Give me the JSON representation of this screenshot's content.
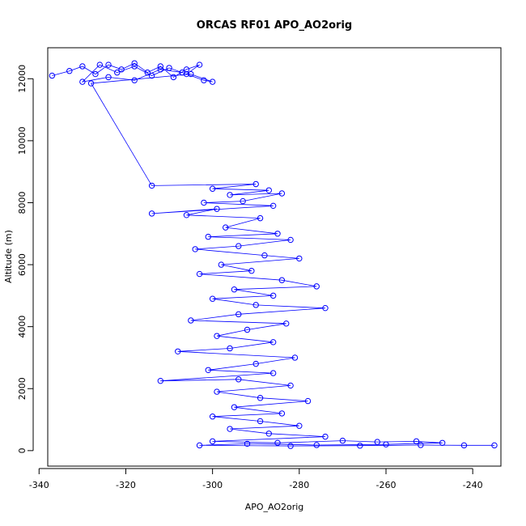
{
  "chart_data": {
    "type": "scatter",
    "title": "ORCAS RF01 APO_AO2orig",
    "xlabel": "APO_AO2orig",
    "ylabel": "Altitude (m)",
    "xlim": [
      -338.0,
      -233.5
    ],
    "ylim": [
      -500,
      13000
    ],
    "x_ticks": [
      -340,
      -320,
      -300,
      -280,
      -260,
      -240
    ],
    "y_ticks": [
      0,
      2000,
      4000,
      6000,
      8000,
      10000,
      12000
    ],
    "marker": "open-circle",
    "connect_points": true,
    "grid": false,
    "legend": "none",
    "colors": {
      "series": "#0000ff",
      "axis": "#000000",
      "background": "#ffffff"
    },
    "series": [
      {
        "values": [
          [
            -337,
            12100
          ],
          [
            -333,
            12250
          ],
          [
            -330,
            12400
          ],
          [
            -327,
            12150
          ],
          [
            -324,
            12450
          ],
          [
            -321,
            12300
          ],
          [
            -318,
            12500
          ],
          [
            -315,
            12200
          ],
          [
            -312,
            12400
          ],
          [
            -309,
            12050
          ],
          [
            -306,
            12300
          ],
          [
            -303,
            12450
          ],
          [
            -306,
            12150
          ],
          [
            -310,
            12350
          ],
          [
            -314,
            12100
          ],
          [
            -318,
            12400
          ],
          [
            -322,
            12200
          ],
          [
            -326,
            12450
          ],
          [
            -330,
            11900
          ],
          [
            -324,
            12050
          ],
          [
            -318,
            11950
          ],
          [
            -312,
            12300
          ],
          [
            -307,
            12200
          ],
          [
            -302,
            11950
          ],
          [
            -300,
            11900
          ],
          [
            -305,
            12150
          ],
          [
            -328,
            11850
          ],
          [
            -314,
            8550
          ],
          [
            -290,
            8600
          ],
          [
            -300,
            8450
          ],
          [
            -287,
            8400
          ],
          [
            -296,
            8250
          ],
          [
            -284,
            8300
          ],
          [
            -293,
            8050
          ],
          [
            -302,
            8000
          ],
          [
            -286,
            7900
          ],
          [
            -314,
            7650
          ],
          [
            -299,
            7800
          ],
          [
            -306,
            7600
          ],
          [
            -289,
            7500
          ],
          [
            -297,
            7200
          ],
          [
            -285,
            7000
          ],
          [
            -301,
            6900
          ],
          [
            -282,
            6800
          ],
          [
            -294,
            6600
          ],
          [
            -304,
            6500
          ],
          [
            -288,
            6300
          ],
          [
            -280,
            6200
          ],
          [
            -298,
            6000
          ],
          [
            -291,
            5800
          ],
          [
            -303,
            5700
          ],
          [
            -284,
            5500
          ],
          [
            -276,
            5300
          ],
          [
            -295,
            5200
          ],
          [
            -286,
            5000
          ],
          [
            -300,
            4900
          ],
          [
            -290,
            4700
          ],
          [
            -274,
            4600
          ],
          [
            -294,
            4400
          ],
          [
            -305,
            4200
          ],
          [
            -283,
            4100
          ],
          [
            -292,
            3900
          ],
          [
            -299,
            3700
          ],
          [
            -286,
            3500
          ],
          [
            -296,
            3300
          ],
          [
            -308,
            3200
          ],
          [
            -281,
            3000
          ],
          [
            -290,
            2800
          ],
          [
            -301,
            2600
          ],
          [
            -286,
            2500
          ],
          [
            -312,
            2250
          ],
          [
            -294,
            2300
          ],
          [
            -282,
            2100
          ],
          [
            -299,
            1900
          ],
          [
            -289,
            1700
          ],
          [
            -278,
            1600
          ],
          [
            -295,
            1400
          ],
          [
            -284,
            1200
          ],
          [
            -300,
            1100
          ],
          [
            -289,
            950
          ],
          [
            -280,
            800
          ],
          [
            -296,
            700
          ],
          [
            -287,
            550
          ],
          [
            -274,
            450
          ],
          [
            -300,
            300
          ],
          [
            -285,
            250
          ],
          [
            -270,
            320
          ],
          [
            -262,
            280
          ],
          [
            -253,
            300
          ],
          [
            -247,
            250
          ],
          [
            -260,
            200
          ],
          [
            -276,
            180
          ],
          [
            -292,
            220
          ],
          [
            -303,
            170
          ],
          [
            -282,
            150
          ],
          [
            -266,
            160
          ],
          [
            -252,
            180
          ],
          [
            -242,
            170
          ],
          [
            -235,
            170
          ]
        ]
      }
    ]
  }
}
